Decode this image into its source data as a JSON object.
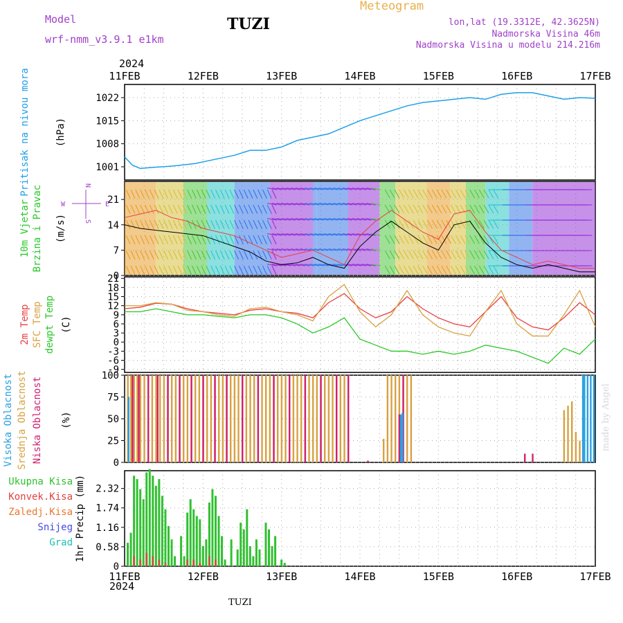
{
  "header": {
    "model_label": "Model",
    "model_name": "wrf-nmm_v3.9.1  e1km",
    "station_title": "TUZI",
    "meteogram_label": "Meteogram",
    "lonlat": "lon,lat (19.3312E, 42.3625N)",
    "elevation": "Nadmorska Visina 46m",
    "model_elevation": "Nadmorska Visina u modelu 214.216m",
    "year_top": "2024",
    "year_bottom": "2024",
    "footer_station": "TUZI",
    "credit": "made by Angel"
  },
  "colors": {
    "pressure": "#1e9fe8",
    "temp2m": "#e84040",
    "sfc_temp": "#d8a040",
    "dewpoint": "#28c828",
    "cloud_high": "#2aa0e0",
    "cloud_mid": "#d8a040",
    "cloud_low": "#d02070",
    "precip_total": "#30c030",
    "precip_conv": "#e04040",
    "precip_frozen": "#e87830",
    "precip_snow": "#4848e0",
    "precip_hail": "#20c0b0"
  },
  "chart_data": [
    {
      "type": "line",
      "panel": "pressure",
      "ylabel_lines": [
        "Pritisak na nivou mora",
        "(hPa)"
      ],
      "yticks": [
        1001,
        1008,
        1015,
        1022
      ],
      "ylim": [
        997,
        1026
      ],
      "x_ticklabels": [
        "11FEB",
        "12FEB",
        "13FEB",
        "14FEB",
        "15FEB",
        "16FEB",
        "17FEB"
      ],
      "x_days": [
        0,
        6
      ],
      "series": [
        {
          "x": [
            0,
            0.1,
            0.2,
            0.35,
            0.6,
            0.9,
            1.1,
            1.4,
            1.6,
            1.8,
            2.0,
            2.2,
            2.4,
            2.6,
            2.8,
            3.0,
            3.2,
            3.4,
            3.6,
            3.8,
            4.0,
            4.2,
            4.4,
            4.6,
            4.8,
            5.0,
            5.2,
            5.4,
            5.6,
            5.8,
            6.0
          ],
          "y": [
            1004,
            1001.5,
            1000.5,
            1000.8,
            1001.2,
            1002,
            1003,
            1004.5,
            1006,
            1006,
            1007,
            1009,
            1010,
            1011,
            1013,
            1015,
            1016.5,
            1018,
            1019.5,
            1020.5,
            1021,
            1021.5,
            1022,
            1021.5,
            1023,
            1023.5,
            1023.5,
            1022.5,
            1021.5,
            1022,
            1021.8
          ]
        }
      ]
    },
    {
      "type": "line",
      "panel": "wind",
      "ylabel_lines": [
        "10m Vjetar",
        "Brzina i Pravac",
        "(m/s)"
      ],
      "compass": {
        "n": "N",
        "s": "S",
        "w": "W",
        "e": "E"
      },
      "yticks": [
        0,
        7,
        14,
        21
      ],
      "ylim": [
        0,
        26
      ],
      "series": [
        {
          "name": "speed",
          "x": [
            0,
            0.2,
            0.4,
            0.6,
            0.8,
            1.0,
            1.2,
            1.4,
            1.6,
            1.8,
            2.0,
            2.2,
            2.4,
            2.6,
            2.8,
            3.0,
            3.2,
            3.4,
            3.6,
            3.8,
            4.0,
            4.2,
            4.4,
            4.6,
            4.8,
            5.0,
            5.2,
            5.4,
            5.6,
            5.8,
            6.0
          ],
          "y": [
            14,
            13,
            12.5,
            12,
            11.5,
            11,
            9.5,
            8,
            6.5,
            4,
            3,
            3.5,
            5,
            3,
            2,
            8,
            12,
            15,
            12,
            9,
            7,
            14,
            15,
            9,
            5,
            3,
            2,
            3,
            2,
            1,
            1
          ]
        },
        {
          "name": "gust",
          "x": [
            0,
            0.2,
            0.4,
            0.6,
            0.8,
            1.0,
            1.2,
            1.4,
            1.6,
            1.8,
            2.0,
            2.2,
            2.4,
            2.6,
            2.8,
            3.0,
            3.2,
            3.4,
            3.6,
            3.8,
            4.0,
            4.2,
            4.4,
            4.6,
            4.8,
            5.0,
            5.2,
            5.4,
            5.6,
            5.8,
            6.0
          ],
          "y": [
            16,
            17,
            18,
            16,
            15,
            13,
            12,
            11,
            9,
            7,
            5,
            6,
            7,
            5,
            3,
            11,
            15,
            18,
            15,
            12,
            10,
            17,
            18,
            12,
            7,
            5,
            3,
            4,
            3,
            2,
            2
          ]
        }
      ]
    },
    {
      "type": "line",
      "panel": "temperature",
      "ylabel_lines": [
        [
          "2m Temp",
          "temp2m"
        ],
        [
          "SFC Temp",
          "sfc_temp"
        ],
        [
          "dewpt Temp",
          "dewpoint"
        ],
        [
          "(C)",
          "black"
        ]
      ],
      "yticks": [
        -9,
        -6,
        -3,
        0,
        3,
        6,
        9,
        12,
        15,
        18,
        21
      ],
      "ylim": [
        -10,
        21.5
      ],
      "series": [
        {
          "name": "2m Temp",
          "x": [
            0,
            0.2,
            0.4,
            0.6,
            0.8,
            1.0,
            1.2,
            1.4,
            1.6,
            1.8,
            2.0,
            2.2,
            2.4,
            2.6,
            2.8,
            3.0,
            3.2,
            3.4,
            3.6,
            3.8,
            4.0,
            4.2,
            4.4,
            4.6,
            4.8,
            5.0,
            5.2,
            5.4,
            5.6,
            5.8,
            6.0
          ],
          "y": [
            11,
            11.5,
            12.8,
            12.5,
            11,
            10,
            9.5,
            9,
            10.5,
            11,
            10,
            9.5,
            8,
            13,
            16,
            11,
            8,
            10,
            15,
            11,
            8,
            6,
            5,
            10,
            15,
            8,
            5,
            4,
            8,
            13,
            9
          ]
        },
        {
          "name": "SFC Temp",
          "x": [
            0,
            0.2,
            0.4,
            0.6,
            0.8,
            1.0,
            1.2,
            1.4,
            1.6,
            1.8,
            2.0,
            2.2,
            2.4,
            2.6,
            2.8,
            3.0,
            3.2,
            3.4,
            3.6,
            3.8,
            4.0,
            4.2,
            4.4,
            4.6,
            4.8,
            5.0,
            5.2,
            5.4,
            5.6,
            5.8,
            6.0
          ],
          "y": [
            12,
            12,
            13,
            12.5,
            10.5,
            10,
            9,
            8.5,
            11,
            11.5,
            10,
            9,
            7,
            15,
            19,
            10,
            5,
            9,
            17,
            9,
            5,
            3,
            2,
            10,
            17,
            6,
            2,
            2,
            9,
            17,
            5
          ]
        },
        {
          "name": "dewpt Temp",
          "x": [
            0,
            0.2,
            0.4,
            0.6,
            0.8,
            1.0,
            1.2,
            1.4,
            1.6,
            1.8,
            2.0,
            2.2,
            2.4,
            2.6,
            2.8,
            3.0,
            3.2,
            3.4,
            3.6,
            3.8,
            4.0,
            4.2,
            4.4,
            4.6,
            4.8,
            5.0,
            5.2,
            5.4,
            5.6,
            5.8,
            6.0
          ],
          "y": [
            10,
            10,
            11,
            10,
            9,
            9,
            8.5,
            8,
            9,
            9,
            8,
            6,
            3,
            5,
            8,
            1,
            -1,
            -3,
            -3,
            -4,
            -3,
            -4,
            -3,
            -1,
            -2,
            -3,
            -5,
            -7,
            -2,
            -4,
            1
          ]
        }
      ]
    },
    {
      "type": "bar",
      "panel": "clouds",
      "ylabel_lines": [
        [
          "Visoka Oblacnost",
          "cloud_high"
        ],
        [
          "Srednja Oblacnost",
          "cloud_mid"
        ],
        [
          "Niska Oblacnost",
          "cloud_low"
        ],
        [
          "(%)",
          "black"
        ]
      ],
      "yticks": [
        0,
        25,
        50,
        75,
        100
      ],
      "ylim": [
        0,
        100
      ],
      "series": [
        {
          "name": "mid",
          "x": [
            0.04,
            0.08,
            0.12,
            0.16,
            0.2,
            0.25,
            0.3,
            0.35,
            0.4,
            0.45,
            0.5,
            0.55,
            0.6,
            0.65,
            0.7,
            0.75,
            0.8,
            0.85,
            0.9,
            0.95,
            1.0,
            1.05,
            1.1,
            1.15,
            1.2,
            1.25,
            1.3,
            1.35,
            1.4,
            1.45,
            1.5,
            1.55,
            1.6,
            1.65,
            1.7,
            1.75,
            1.8,
            1.85,
            1.9,
            1.95,
            2.0,
            2.05,
            2.1,
            2.15,
            2.2,
            2.25,
            2.3,
            2.35,
            2.4,
            2.45,
            2.5,
            2.55,
            2.6,
            2.65,
            2.7,
            2.75,
            2.8,
            2.85,
            3.3,
            3.35,
            3.4,
            3.45,
            3.5,
            3.55,
            3.6,
            3.65,
            5.6,
            5.65,
            5.7,
            5.75,
            5.8
          ],
          "values": [
            100,
            100,
            100,
            100,
            100,
            100,
            100,
            100,
            100,
            100,
            100,
            100,
            100,
            100,
            100,
            100,
            100,
            100,
            100,
            100,
            100,
            100,
            100,
            100,
            100,
            100,
            100,
            100,
            100,
            100,
            100,
            100,
            100,
            100,
            100,
            100,
            100,
            100,
            100,
            100,
            100,
            100,
            100,
            100,
            100,
            100,
            100,
            100,
            100,
            100,
            100,
            100,
            100,
            100,
            100,
            100,
            100,
            95,
            27,
            100,
            100,
            100,
            100,
            100,
            100,
            100,
            60,
            65,
            70,
            35,
            25
          ]
        },
        {
          "name": "low",
          "x": [
            0.1,
            0.18,
            0.3,
            0.42,
            0.55,
            0.7,
            0.85,
            1.0,
            1.15,
            1.3,
            1.5,
            1.7,
            1.9,
            2.1,
            2.3,
            2.5,
            2.7,
            2.85,
            3.1,
            3.5,
            3.55,
            5.1,
            5.2
          ],
          "values": [
            100,
            100,
            100,
            100,
            100,
            100,
            100,
            100,
            100,
            100,
            100,
            100,
            100,
            100,
            100,
            100,
            100,
            100,
            2,
            55,
            100,
            10,
            10
          ]
        },
        {
          "name": "high",
          "x": [
            0.05,
            3.52,
            3.54,
            5.84,
            5.86,
            5.9,
            5.94,
            5.98
          ],
          "values": [
            75,
            55,
            57,
            100,
            100,
            100,
            100,
            100
          ]
        }
      ]
    },
    {
      "type": "bar",
      "panel": "precip",
      "ylabel_lines": [
        "1hr Precip (mm)"
      ],
      "legend": [
        "Ukupna Kisa",
        "Konvek.Kisa",
        "Zaledj.Kisa",
        "Snijeg",
        "Grad"
      ],
      "yticks": [
        0,
        0.58,
        1.16,
        1.74,
        2.32
      ],
      "ylim": [
        0,
        2.85
      ],
      "series": [
        {
          "name": "Ukupna Kisa",
          "x": [
            0.04,
            0.08,
            0.12,
            0.16,
            0.2,
            0.24,
            0.28,
            0.32,
            0.36,
            0.4,
            0.44,
            0.48,
            0.52,
            0.56,
            0.6,
            0.64,
            0.72,
            0.76,
            0.8,
            0.84,
            0.88,
            0.92,
            0.96,
            1.0,
            1.04,
            1.08,
            1.12,
            1.16,
            1.2,
            1.24,
            1.28,
            1.36,
            1.44,
            1.48,
            1.52,
            1.56,
            1.6,
            1.64,
            1.68,
            1.72,
            1.8,
            1.84,
            1.88,
            1.92,
            2.0,
            2.04
          ],
          "values": [
            0.7,
            1.0,
            2.7,
            2.6,
            2.3,
            2.0,
            2.8,
            2.9,
            2.7,
            2.4,
            2.6,
            2.1,
            1.7,
            1.2,
            0.8,
            0.3,
            0.9,
            0.3,
            1.6,
            2.0,
            1.7,
            1.5,
            1.4,
            0.6,
            0.8,
            1.9,
            2.3,
            2.1,
            1.5,
            0.9,
            0.2,
            0.8,
            0.5,
            1.3,
            1.1,
            1.7,
            0.6,
            0.3,
            0.8,
            0.5,
            1.3,
            1.1,
            0.6,
            0.9,
            0.2,
            0.1
          ]
        },
        {
          "name": "Konvek.Kisa",
          "x": [
            0.12,
            0.2,
            0.28,
            0.36,
            0.44,
            0.52,
            0.8,
            0.88,
            0.96,
            1.08,
            1.16
          ],
          "values": [
            0.3,
            0.2,
            0.4,
            0.3,
            0.2,
            0.1,
            0.2,
            0.2,
            0.1,
            0.3,
            0.2
          ]
        }
      ]
    }
  ]
}
